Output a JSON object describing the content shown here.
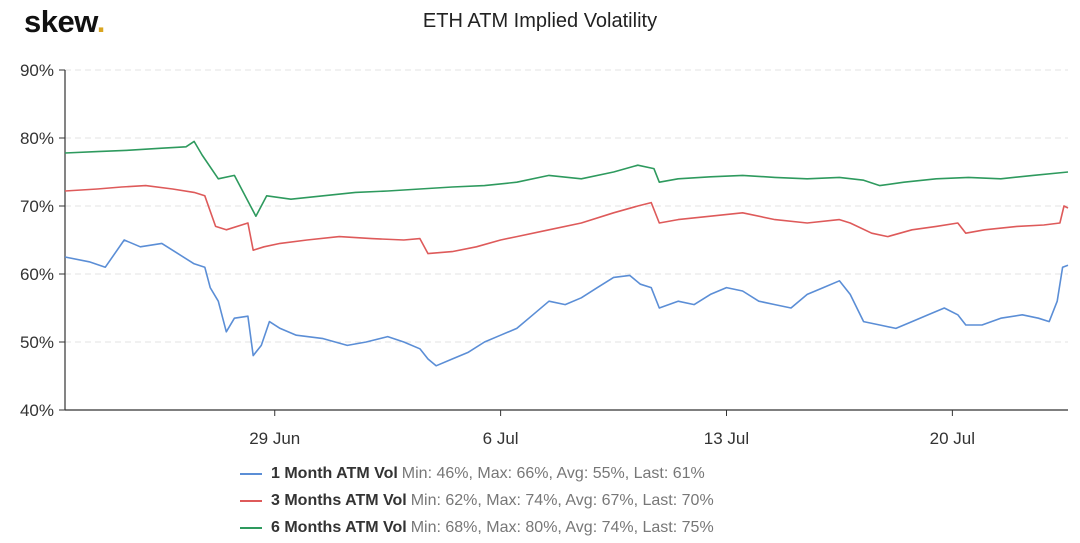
{
  "logo": {
    "text": "skew",
    "dot": "."
  },
  "chart_data": {
    "type": "line",
    "title": "ETH ATM Implied Volatility",
    "xlabel": "",
    "ylabel": "",
    "ylim": [
      40,
      90
    ],
    "yticks": [
      "40%",
      "50%",
      "60%",
      "70%",
      "80%",
      "90%"
    ],
    "yticks_values": [
      40,
      50,
      60,
      70,
      80,
      90
    ],
    "xlim": [
      "2020-06-22T12:00",
      "2020-07-23T14:00"
    ],
    "xticks": [
      {
        "label": "29 Jun",
        "date": "2020-06-29"
      },
      {
        "label": "6 Jul",
        "date": "2020-07-06"
      },
      {
        "label": "13 Jul",
        "date": "2020-07-13"
      },
      {
        "label": "20 Jul",
        "date": "2020-07-20"
      }
    ],
    "grid": true,
    "legend_position": "bottom",
    "series": [
      {
        "name": "1 Month ATM Vol",
        "stats": "Min: 46%, Max: 66%, Avg: 55%, Last: 61%",
        "color": "#5b8ed6",
        "points": [
          [
            "2020-06-22T12:00",
            62.5
          ],
          [
            "2020-06-23T06:00",
            61.8
          ],
          [
            "2020-06-23T18:00",
            61.0
          ],
          [
            "2020-06-24T08:00",
            65.0
          ],
          [
            "2020-06-24T20:00",
            64.0
          ],
          [
            "2020-06-25T12:00",
            64.5
          ],
          [
            "2020-06-26T00:00",
            63.0
          ],
          [
            "2020-06-26T12:00",
            61.5
          ],
          [
            "2020-06-26T20:00",
            61.0
          ],
          [
            "2020-06-27T00:00",
            58.0
          ],
          [
            "2020-06-27T06:00",
            56.0
          ],
          [
            "2020-06-27T12:00",
            51.5
          ],
          [
            "2020-06-27T18:00",
            53.5
          ],
          [
            "2020-06-28T04:00",
            53.8
          ],
          [
            "2020-06-28T08:00",
            48.0
          ],
          [
            "2020-06-28T14:00",
            49.5
          ],
          [
            "2020-06-28T20:00",
            53.0
          ],
          [
            "2020-06-29T04:00",
            52.0
          ],
          [
            "2020-06-29T16:00",
            51.0
          ],
          [
            "2020-06-30T12:00",
            50.5
          ],
          [
            "2020-07-01T06:00",
            49.5
          ],
          [
            "2020-07-01T20:00",
            50.0
          ],
          [
            "2020-07-02T12:00",
            50.8
          ],
          [
            "2020-07-03T00:00",
            50.0
          ],
          [
            "2020-07-03T12:00",
            49.0
          ],
          [
            "2020-07-03T18:00",
            47.5
          ],
          [
            "2020-07-04T00:00",
            46.5
          ],
          [
            "2020-07-04T12:00",
            47.5
          ],
          [
            "2020-07-05T00:00",
            48.5
          ],
          [
            "2020-07-05T12:00",
            50.0
          ],
          [
            "2020-07-06T00:00",
            51.0
          ],
          [
            "2020-07-06T12:00",
            52.0
          ],
          [
            "2020-07-07T00:00",
            54.0
          ],
          [
            "2020-07-07T12:00",
            56.0
          ],
          [
            "2020-07-08T00:00",
            55.5
          ],
          [
            "2020-07-08T12:00",
            56.5
          ],
          [
            "2020-07-09T00:00",
            58.0
          ],
          [
            "2020-07-09T12:00",
            59.5
          ],
          [
            "2020-07-10T00:00",
            59.8
          ],
          [
            "2020-07-10T08:00",
            58.5
          ],
          [
            "2020-07-10T16:00",
            58.0
          ],
          [
            "2020-07-10T22:00",
            55.0
          ],
          [
            "2020-07-11T12:00",
            56.0
          ],
          [
            "2020-07-12T00:00",
            55.5
          ],
          [
            "2020-07-12T12:00",
            57.0
          ],
          [
            "2020-07-13T00:00",
            58.0
          ],
          [
            "2020-07-13T12:00",
            57.5
          ],
          [
            "2020-07-14T00:00",
            56.0
          ],
          [
            "2020-07-14T12:00",
            55.5
          ],
          [
            "2020-07-15T00:00",
            55.0
          ],
          [
            "2020-07-15T12:00",
            57.0
          ],
          [
            "2020-07-16T00:00",
            58.0
          ],
          [
            "2020-07-16T12:00",
            59.0
          ],
          [
            "2020-07-16T20:00",
            57.0
          ],
          [
            "2020-07-17T06:00",
            53.0
          ],
          [
            "2020-07-17T18:00",
            52.5
          ],
          [
            "2020-07-18T06:00",
            52.0
          ],
          [
            "2020-07-18T18:00",
            53.0
          ],
          [
            "2020-07-19T06:00",
            54.0
          ],
          [
            "2020-07-19T18:00",
            55.0
          ],
          [
            "2020-07-20T04:00",
            54.0
          ],
          [
            "2020-07-20T10:00",
            52.5
          ],
          [
            "2020-07-20T22:00",
            52.5
          ],
          [
            "2020-07-21T12:00",
            53.5
          ],
          [
            "2020-07-22T04:00",
            54.0
          ],
          [
            "2020-07-22T16:00",
            53.5
          ],
          [
            "2020-07-23T00:00",
            53.0
          ],
          [
            "2020-07-23T06:00",
            56.0
          ],
          [
            "2020-07-23T10:00",
            61.0
          ],
          [
            "2020-07-23T14:00",
            61.3
          ]
        ]
      },
      {
        "name": "3 Months ATM Vol",
        "stats": "Min: 62%, Max: 74%, Avg: 67%, Last: 70%",
        "color": "#de5a5a",
        "points": [
          [
            "2020-06-22T12:00",
            72.2
          ],
          [
            "2020-06-23T12:00",
            72.5
          ],
          [
            "2020-06-24T06:00",
            72.8
          ],
          [
            "2020-06-25T00:00",
            73.0
          ],
          [
            "2020-06-25T20:00",
            72.5
          ],
          [
            "2020-06-26T12:00",
            72.0
          ],
          [
            "2020-06-26T20:00",
            71.5
          ],
          [
            "2020-06-27T04:00",
            67.0
          ],
          [
            "2020-06-27T12:00",
            66.5
          ],
          [
            "2020-06-28T04:00",
            67.5
          ],
          [
            "2020-06-28T08:00",
            63.5
          ],
          [
            "2020-06-28T16:00",
            64.0
          ],
          [
            "2020-06-29T04:00",
            64.5
          ],
          [
            "2020-06-30T00:00",
            65.0
          ],
          [
            "2020-07-01T00:00",
            65.5
          ],
          [
            "2020-07-02T00:00",
            65.2
          ],
          [
            "2020-07-03T00:00",
            65.0
          ],
          [
            "2020-07-03T12:00",
            65.2
          ],
          [
            "2020-07-03T18:00",
            63.0
          ],
          [
            "2020-07-04T12:00",
            63.3
          ],
          [
            "2020-07-05T06:00",
            64.0
          ],
          [
            "2020-07-06T00:00",
            65.0
          ],
          [
            "2020-07-06T12:00",
            65.5
          ],
          [
            "2020-07-07T12:00",
            66.5
          ],
          [
            "2020-07-08T12:00",
            67.5
          ],
          [
            "2020-07-09T12:00",
            69.0
          ],
          [
            "2020-07-10T06:00",
            70.0
          ],
          [
            "2020-07-10T16:00",
            70.5
          ],
          [
            "2020-07-10T22:00",
            67.5
          ],
          [
            "2020-07-11T12:00",
            68.0
          ],
          [
            "2020-07-12T12:00",
            68.5
          ],
          [
            "2020-07-13T12:00",
            69.0
          ],
          [
            "2020-07-14T12:00",
            68.0
          ],
          [
            "2020-07-15T12:00",
            67.5
          ],
          [
            "2020-07-16T12:00",
            68.0
          ],
          [
            "2020-07-16T20:00",
            67.5
          ],
          [
            "2020-07-17T12:00",
            66.0
          ],
          [
            "2020-07-18T00:00",
            65.5
          ],
          [
            "2020-07-18T18:00",
            66.5
          ],
          [
            "2020-07-19T12:00",
            67.0
          ],
          [
            "2020-07-20T04:00",
            67.5
          ],
          [
            "2020-07-20T10:00",
            66.0
          ],
          [
            "2020-07-21T00:00",
            66.5
          ],
          [
            "2020-07-22T00:00",
            67.0
          ],
          [
            "2020-07-22T20:00",
            67.2
          ],
          [
            "2020-07-23T08:00",
            67.5
          ],
          [
            "2020-07-23T11:00",
            70.0
          ],
          [
            "2020-07-23T14:00",
            69.7
          ]
        ]
      },
      {
        "name": "6 Months ATM Vol",
        "stats": "Min: 68%, Max: 80%, Avg: 74%, Last: 75%",
        "color": "#2e9a5e",
        "points": [
          [
            "2020-06-22T12:00",
            77.8
          ],
          [
            "2020-06-23T12:00",
            78.0
          ],
          [
            "2020-06-24T12:00",
            78.2
          ],
          [
            "2020-06-25T12:00",
            78.5
          ],
          [
            "2020-06-26T06:00",
            78.7
          ],
          [
            "2020-06-26T12:00",
            79.5
          ],
          [
            "2020-06-26T18:00",
            77.5
          ],
          [
            "2020-06-27T06:00",
            74.0
          ],
          [
            "2020-06-27T18:00",
            74.5
          ],
          [
            "2020-06-28T06:00",
            70.0
          ],
          [
            "2020-06-28T10:00",
            68.5
          ],
          [
            "2020-06-28T18:00",
            71.5
          ],
          [
            "2020-06-29T12:00",
            71.0
          ],
          [
            "2020-06-30T12:00",
            71.5
          ],
          [
            "2020-07-01T12:00",
            72.0
          ],
          [
            "2020-07-02T12:00",
            72.2
          ],
          [
            "2020-07-03T12:00",
            72.5
          ],
          [
            "2020-07-04T12:00",
            72.8
          ],
          [
            "2020-07-05T12:00",
            73.0
          ],
          [
            "2020-07-06T12:00",
            73.5
          ],
          [
            "2020-07-07T12:00",
            74.5
          ],
          [
            "2020-07-08T12:00",
            74.0
          ],
          [
            "2020-07-09T12:00",
            75.0
          ],
          [
            "2020-07-10T06:00",
            76.0
          ],
          [
            "2020-07-10T18:00",
            75.5
          ],
          [
            "2020-07-10T22:00",
            73.5
          ],
          [
            "2020-07-11T12:00",
            74.0
          ],
          [
            "2020-07-12T12:00",
            74.3
          ],
          [
            "2020-07-13T12:00",
            74.5
          ],
          [
            "2020-07-14T12:00",
            74.2
          ],
          [
            "2020-07-15T12:00",
            74.0
          ],
          [
            "2020-07-16T12:00",
            74.2
          ],
          [
            "2020-07-17T06:00",
            73.8
          ],
          [
            "2020-07-17T18:00",
            73.0
          ],
          [
            "2020-07-18T12:00",
            73.5
          ],
          [
            "2020-07-19T12:00",
            74.0
          ],
          [
            "2020-07-20T12:00",
            74.2
          ],
          [
            "2020-07-21T12:00",
            74.0
          ],
          [
            "2020-07-22T12:00",
            74.5
          ],
          [
            "2020-07-23T14:00",
            75.0
          ]
        ]
      }
    ]
  }
}
